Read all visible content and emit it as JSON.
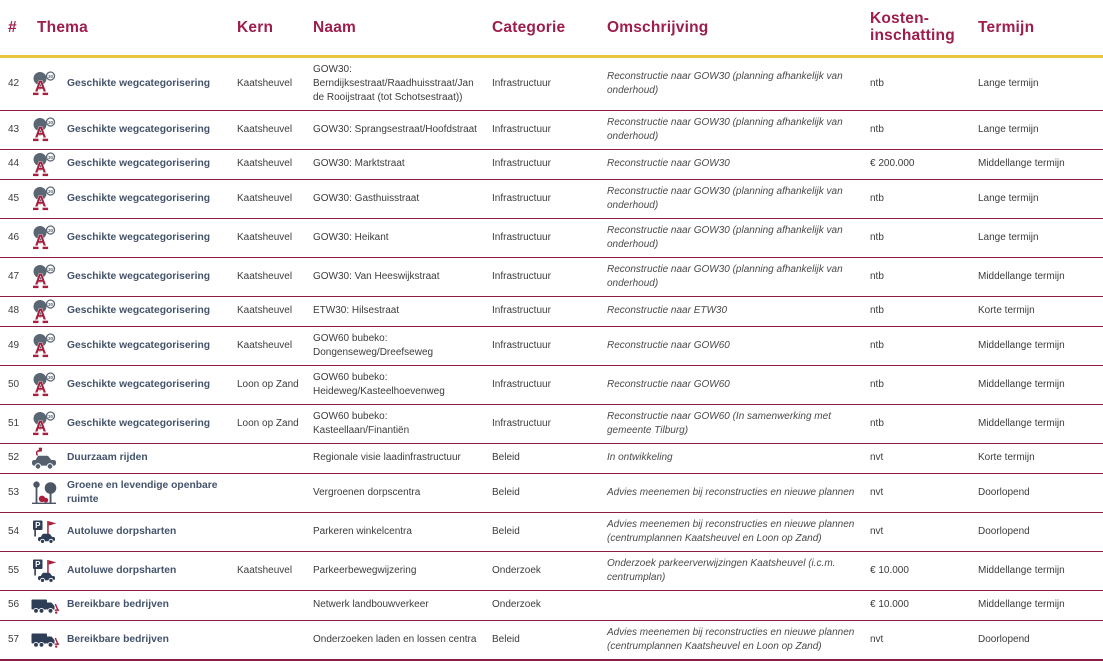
{
  "colors": {
    "header_text": "#9d1d4c",
    "header_underline": "#e8c63f",
    "row_divider": "#8e1d45",
    "thema_text": "#44536a",
    "body_text": "#3c3c3c",
    "icon_navy": "#2f3e57",
    "icon_gray": "#5b6673",
    "icon_red": "#a81e3e"
  },
  "table": {
    "headers": {
      "num": "#",
      "thema": "Thema",
      "kern": "Kern",
      "naam": "Naam",
      "categorie": "Categorie",
      "omschrijving": "Omschrijving",
      "kosten": "Kosten-inschatting",
      "termijn": "Termijn"
    },
    "rows": [
      {
        "num": "42",
        "icon": "road-category-icon",
        "thema": "Geschikte wegcategorisering",
        "kern": "Kaatsheuvel",
        "naam": "GOW30: Berndijksestraat/Raadhuisstraat/Jan de Rooijstraat (tot Schotsestraat))",
        "categorie": "Infrastructuur",
        "omschrijving": "Reconstructie naar GOW30 (planning afhankelijk van onderhoud)",
        "kosten": "ntb",
        "termijn": "Lange termijn"
      },
      {
        "num": "43",
        "icon": "road-category-icon",
        "thema": "Geschikte wegcategorisering",
        "kern": "Kaatsheuvel",
        "naam": "GOW30: Sprangsestraat/Hoofdstraat",
        "categorie": "Infrastructuur",
        "omschrijving": "Reconstructie naar GOW30 (planning afhankelijk van onderhoud)",
        "kosten": "ntb",
        "termijn": "Lange termijn"
      },
      {
        "num": "44",
        "icon": "road-category-icon",
        "thema": "Geschikte wegcategorisering",
        "kern": "Kaatsheuvel",
        "naam": "GOW30: Marktstraat",
        "categorie": "Infrastructuur",
        "omschrijving": "Reconstructie naar GOW30",
        "kosten": "€ 200.000",
        "termijn": "Middellange termijn"
      },
      {
        "num": "45",
        "icon": "road-category-icon",
        "thema": "Geschikte wegcategorisering",
        "kern": "Kaatsheuvel",
        "naam": "GOW30: Gasthuisstraat",
        "categorie": "Infrastructuur",
        "omschrijving": "Reconstructie naar GOW30 (planning afhankelijk van onderhoud)",
        "kosten": "ntb",
        "termijn": "Lange termijn"
      },
      {
        "num": "46",
        "icon": "road-category-icon",
        "thema": "Geschikte wegcategorisering",
        "kern": "Kaatsheuvel",
        "naam": "GOW30: Heikant",
        "categorie": "Infrastructuur",
        "omschrijving": "Reconstructie naar GOW30 (planning afhankelijk van onderhoud)",
        "kosten": "ntb",
        "termijn": "Lange termijn"
      },
      {
        "num": "47",
        "icon": "road-category-icon",
        "thema": "Geschikte wegcategorisering",
        "kern": "Kaatsheuvel",
        "naam": "GOW30: Van Heeswijkstraat",
        "categorie": "Infrastructuur",
        "omschrijving": "Reconstructie naar GOW30 (planning afhankelijk van onderhoud)",
        "kosten": "ntb",
        "termijn": "Middellange termijn"
      },
      {
        "num": "48",
        "icon": "road-category-icon",
        "thema": "Geschikte wegcategorisering",
        "kern": "Kaatsheuvel",
        "naam": "ETW30: Hilsestraat",
        "categorie": "Infrastructuur",
        "omschrijving": "Reconstructie naar ETW30",
        "kosten": "ntb",
        "termijn": "Korte termijn"
      },
      {
        "num": "49",
        "icon": "road-category-icon",
        "thema": "Geschikte wegcategorisering",
        "kern": "Kaatsheuvel",
        "naam": "GOW60 bubeko: Dongenseweg/Dreefseweg",
        "categorie": "Infrastructuur",
        "omschrijving": "Reconstructie naar GOW60",
        "kosten": "ntb",
        "termijn": "Middellange termijn"
      },
      {
        "num": "50",
        "icon": "road-category-icon",
        "thema": "Geschikte wegcategorisering",
        "kern": "Loon op Zand",
        "naam": "GOW60 bubeko: Heideweg/Kasteelhoevenweg",
        "categorie": "Infrastructuur",
        "omschrijving": "Reconstructie naar GOW60",
        "kosten": "ntb",
        "termijn": "Middellange termijn"
      },
      {
        "num": "51",
        "icon": "road-category-icon",
        "thema": "Geschikte wegcategorisering",
        "kern": "Loon op Zand",
        "naam": "GOW60 bubeko: Kasteellaan/Finantiën",
        "categorie": "Infrastructuur",
        "omschrijving": "Reconstructie naar GOW60 (In samenwerking met gemeente Tilburg)",
        "kosten": "ntb",
        "termijn": "Middellange termijn"
      },
      {
        "num": "52",
        "icon": "ev-car-icon",
        "thema": "Duurzaam rijden",
        "kern": "",
        "naam": "Regionale visie laadinfrastructuur",
        "categorie": "Beleid",
        "omschrijving": "In ontwikkeling",
        "kosten": "nvt",
        "termijn": "Korte termijn"
      },
      {
        "num": "53",
        "icon": "green-space-icon",
        "thema": "Groene en levendige openbare ruimte",
        "kern": "",
        "naam": "Vergroenen dorpscentra",
        "categorie": "Beleid",
        "omschrijving": "Advies meenemen bij reconstructies en nieuwe plannen",
        "kosten": "nvt",
        "termijn": "Doorlopend"
      },
      {
        "num": "54",
        "icon": "parking-car-icon",
        "thema": "Autoluwe dorpsharten",
        "kern": "",
        "naam": "Parkeren winkelcentra",
        "categorie": "Beleid",
        "omschrijving": "Advies meenemen bij reconstructies en nieuwe plannen (centrumplannen Kaatsheuvel en Loon op Zand)",
        "kosten": "nvt",
        "termijn": "Doorlopend"
      },
      {
        "num": "55",
        "icon": "parking-car-icon",
        "thema": "Autoluwe dorpsharten",
        "kern": "Kaatsheuvel",
        "naam": "Parkeerbewegwijzering",
        "categorie": "Onderzoek",
        "omschrijving": "Onderzoek parkeerverwijzingen Kaatsheuvel (i.c.m. centrumplan)",
        "kosten": "€ 10.000",
        "termijn": "Middellange termijn"
      },
      {
        "num": "56",
        "icon": "truck-icon",
        "thema": "Bereikbare bedrijven",
        "kern": "",
        "naam": "Netwerk landbouwverkeer",
        "categorie": "Onderzoek",
        "omschrijving": "",
        "kosten": "€ 10.000",
        "termijn": "Middellange termijn"
      },
      {
        "num": "57",
        "icon": "truck-icon",
        "thema": "Bereikbare bedrijven",
        "kern": "",
        "naam": "Onderzoeken laden en lossen centra",
        "categorie": "Beleid",
        "omschrijving": "Advies meenemen bij reconstructies en nieuwe plannen (centrumplannen Kaatsheuvel en Loon op Zand)",
        "kosten": "nvt",
        "termijn": "Doorlopend"
      }
    ]
  }
}
